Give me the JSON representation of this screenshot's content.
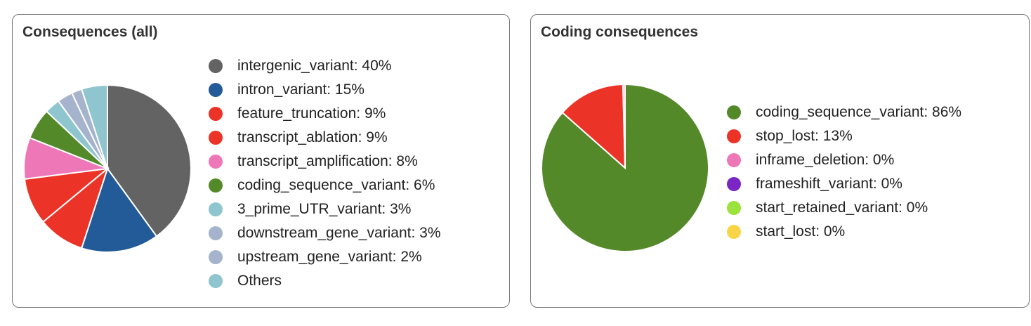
{
  "chart_data": [
    {
      "type": "pie",
      "title": "Consequences (all)",
      "slices": [
        {
          "label": "intergenic_variant: 40%",
          "value": 40,
          "color": "#636363"
        },
        {
          "label": "intron_variant: 15%",
          "value": 15,
          "color": "#225b97"
        },
        {
          "label": "feature_truncation: 9%",
          "value": 9,
          "color": "#ec3327"
        },
        {
          "label": "transcript_ablation: 9%",
          "value": 9,
          "color": "#ec3327"
        },
        {
          "label": "transcript_amplification: 8%",
          "value": 8,
          "color": "#ee77b8"
        },
        {
          "label": "coding_sequence_variant: 6%",
          "value": 6,
          "color": "#54892a"
        },
        {
          "label": "3_prime_UTR_variant: 3%",
          "value": 3,
          "color": "#8ec5ce"
        },
        {
          "label": "downstream_gene_variant: 3%",
          "value": 3,
          "color": "#a6b3cc"
        },
        {
          "label": "upstream_gene_variant: 2%",
          "value": 2,
          "color": "#a6b3cc"
        },
        {
          "label": "Others",
          "value": 5,
          "color": "#8ec5ce"
        }
      ],
      "legend_position": "right"
    },
    {
      "type": "pie",
      "title": "Coding consequences",
      "slices": [
        {
          "label": "coding_sequence_variant: 86%",
          "value": 86,
          "color": "#54892a"
        },
        {
          "label": "stop_lost: 13%",
          "value": 13,
          "color": "#ec3327"
        },
        {
          "label": "inframe_deletion: 0%",
          "value": 0.4,
          "color": "#ee77b8"
        },
        {
          "label": "frameshift_variant: 0%",
          "value": 0,
          "color": "#7a25c4"
        },
        {
          "label": "start_retained_variant: 0%",
          "value": 0,
          "color": "#9be23d"
        },
        {
          "label": "start_lost: 0%",
          "value": 0,
          "color": "#f9d446"
        }
      ],
      "legend_position": "right"
    }
  ]
}
